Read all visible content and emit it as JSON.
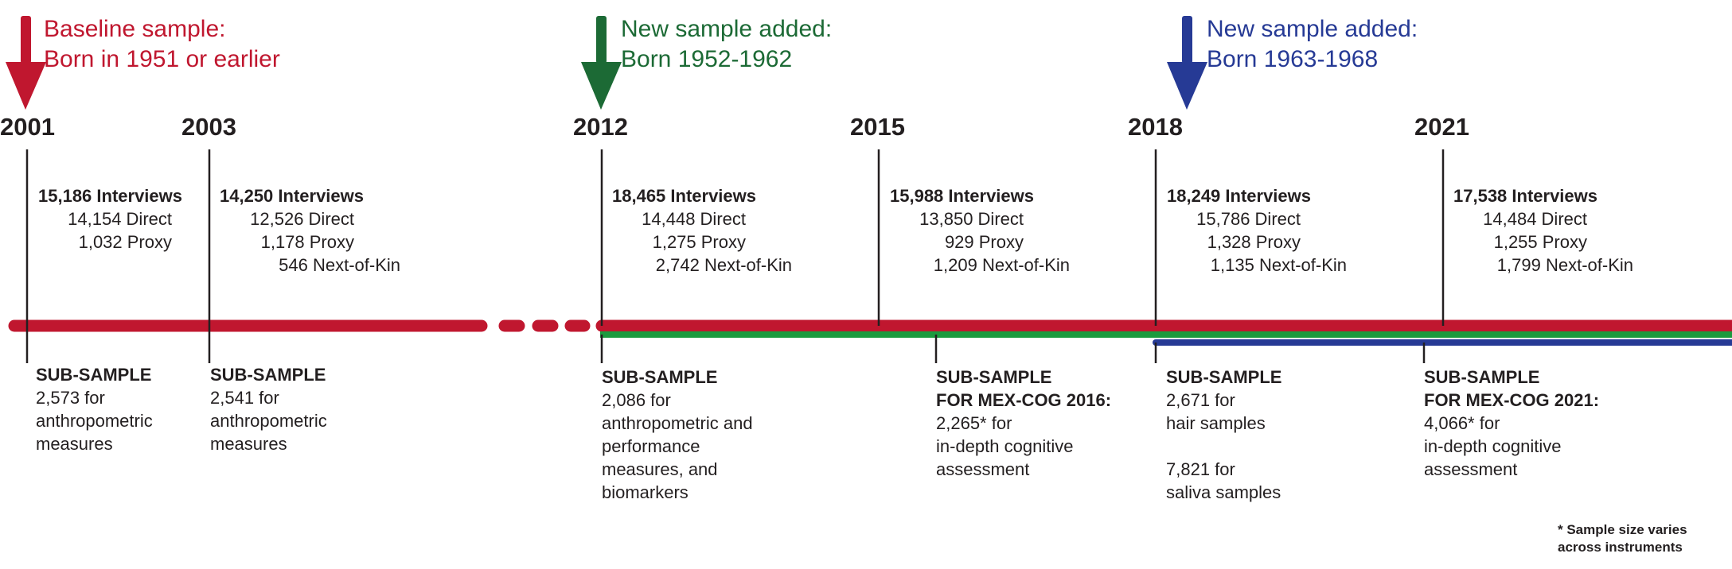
{
  "cohorts": [
    {
      "line1": "Baseline sample:",
      "line2": "Born in 1951 or earlier",
      "color": "#c0172f"
    },
    {
      "line1": "New sample added:",
      "line2": "Born 1952-1962",
      "color": "#1c6a35"
    },
    {
      "line1": "New sample added:",
      "line2": "Born 1963-1968",
      "color": "#263a95"
    }
  ],
  "waves": [
    {
      "year": "2001",
      "total": "15,186 Interviews",
      "lines": [
        "14,154 Direct",
        "1,032 Proxy"
      ]
    },
    {
      "year": "2003",
      "total": "14,250 Interviews",
      "lines": [
        "12,526 Direct",
        "1,178 Proxy",
        "546 Next-of-Kin"
      ]
    },
    {
      "year": "2012",
      "total": "18,465 Interviews",
      "lines": [
        "14,448 Direct",
        "1,275 Proxy",
        "2,742 Next-of-Kin"
      ]
    },
    {
      "year": "2015",
      "total": "15,988 Interviews",
      "lines": [
        "13,850 Direct",
        "929 Proxy",
        "1,209 Next-of-Kin"
      ]
    },
    {
      "year": "2018",
      "total": "18,249 Interviews",
      "lines": [
        "15,786 Direct",
        "1,328 Proxy",
        "1,135 Next-of-Kin"
      ]
    },
    {
      "year": "2021",
      "total": "17,538 Interviews",
      "lines": [
        "14,484 Direct",
        "1,255 Proxy",
        "1,799 Next-of-Kin"
      ]
    }
  ],
  "subsamples": [
    {
      "heading": [
        "SUB-SAMPLE"
      ],
      "lines": [
        "2,573 for",
        "anthropometric",
        "measures"
      ]
    },
    {
      "heading": [
        "SUB-SAMPLE"
      ],
      "lines": [
        "2,541 for",
        "anthropometric",
        "measures"
      ]
    },
    {
      "heading": [
        "SUB-SAMPLE"
      ],
      "lines": [
        "2,086 for",
        "anthropometric and",
        "performance",
        "measures, and",
        "biomarkers"
      ]
    },
    {
      "heading": [
        "SUB-SAMPLE",
        "FOR MEX-COG 2016:"
      ],
      "lines": [
        "2,265* for",
        "in-depth cognitive",
        "assessment"
      ]
    },
    {
      "heading": [
        "SUB-SAMPLE"
      ],
      "lines": [
        "2,671 for",
        "hair samples",
        "",
        "7,821 for",
        "saliva samples"
      ]
    },
    {
      "heading": [
        "SUB-SAMPLE",
        "FOR MEX-COG 2021:"
      ],
      "lines": [
        "4,066* for",
        "in-depth cognitive",
        "assessment"
      ]
    }
  ],
  "footnote": [
    "* Sample size varies",
    "across instruments"
  ]
}
